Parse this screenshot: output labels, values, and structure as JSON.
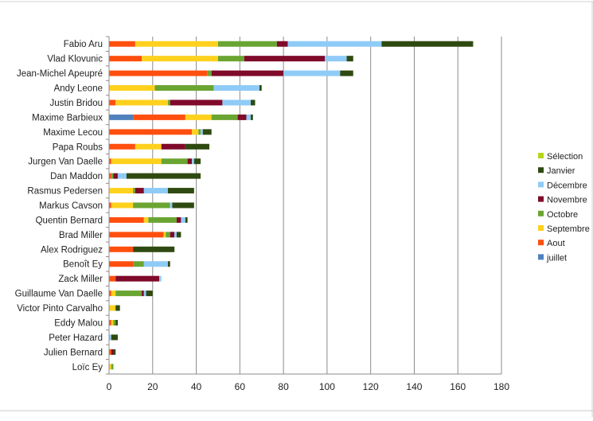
{
  "chart_data": {
    "type": "bar",
    "orientation": "horizontal",
    "stacked": true,
    "categories": [
      "Fabio Aru",
      "Vlad Klovunic",
      "Jean-Michel Apeupré",
      "Andy Leone",
      "Justin Bridou",
      "Maxime Barbieux",
      "Maxime Lecou",
      "Papa Roubs",
      "Jurgen Van Daelle",
      "Dan Maddon",
      "Rasmus Pedersen",
      "Markus Cavson",
      "Quentin Bernard",
      "Brad Miller",
      "Alex Rodriguez",
      "Benoît Ey",
      "Zack Miller",
      "Guillaume Van Daelle",
      "Victor Pinto Carvalho",
      "Eddy Malou",
      "Peter Hazard",
      "Julien Bernard",
      "Loïc Ey"
    ],
    "series": [
      {
        "name": "juillet",
        "color": "#4f81bd",
        "values": [
          0,
          0,
          0,
          0,
          0,
          11,
          0,
          0,
          0,
          0,
          0,
          0,
          0,
          0,
          0,
          0,
          0,
          0,
          0,
          0,
          0,
          0,
          0
        ]
      },
      {
        "name": "Aout",
        "color": "#ff4f0f",
        "values": [
          12,
          15,
          45,
          0,
          3,
          24,
          38,
          12,
          1,
          1,
          0,
          1,
          16,
          25,
          11,
          11,
          3,
          1,
          0,
          1,
          0,
          1,
          0
        ]
      },
      {
        "name": "Septembre",
        "color": "#ffd11e",
        "values": [
          38,
          35,
          0,
          21,
          24,
          12,
          3,
          12,
          23,
          0,
          11,
          10,
          2,
          1,
          0,
          0,
          0,
          2,
          3,
          1,
          0,
          0,
          1
        ]
      },
      {
        "name": "Octobre",
        "color": "#6aa532",
        "values": [
          27,
          12,
          2,
          27,
          1,
          12,
          1,
          0,
          12,
          1,
          1,
          17,
          13,
          2,
          0,
          5,
          0,
          12,
          0,
          1,
          0,
          0,
          1
        ]
      },
      {
        "name": "Novembre",
        "color": "#7f0a2a",
        "values": [
          5,
          37,
          33,
          0,
          24,
          4,
          0,
          11,
          2,
          2,
          4,
          0,
          2,
          2,
          0,
          0,
          20,
          1,
          0,
          0,
          0,
          1,
          0
        ]
      },
      {
        "name": "Décembre",
        "color": "#8fcbf7",
        "values": [
          43,
          10,
          26,
          21,
          13,
          2,
          1,
          0,
          1,
          4,
          11,
          1,
          2,
          1,
          0,
          11,
          1,
          1,
          0,
          0,
          1,
          0,
          0
        ]
      },
      {
        "name": "Janvier",
        "color": "#2f4a10",
        "values": [
          42,
          3,
          6,
          1,
          2,
          1,
          4,
          11,
          3,
          34,
          12,
          10,
          1,
          2,
          19,
          1,
          0,
          3,
          2,
          1,
          3,
          1,
          0
        ]
      },
      {
        "name": "Sélection",
        "color": "#b8d41a",
        "values": [
          0,
          0,
          0,
          0,
          0,
          0,
          0,
          0,
          0,
          0,
          0,
          0,
          0,
          0,
          0,
          0,
          0,
          0,
          0,
          0,
          0,
          0,
          0
        ]
      }
    ],
    "xlim": [
      0,
      180
    ],
    "xticks": [
      0,
      20,
      40,
      60,
      80,
      100,
      120,
      140,
      160,
      180
    ],
    "legend_order": [
      "Sélection",
      "Janvier",
      "Décembre",
      "Novembre",
      "Octobre",
      "Septembre",
      "Aout",
      "juillet"
    ],
    "legend_position": "right",
    "grid": "vertical"
  }
}
